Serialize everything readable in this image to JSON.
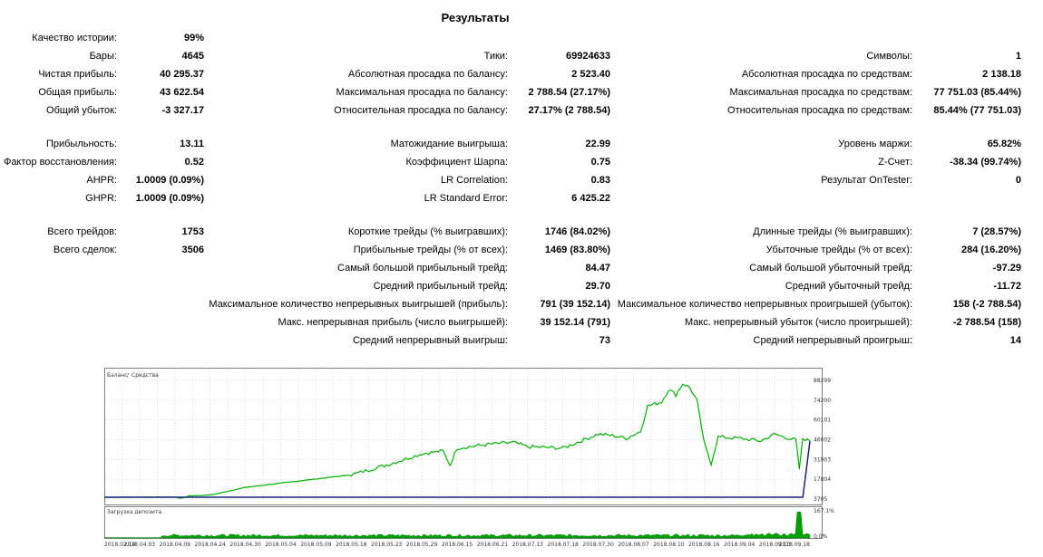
{
  "report": {
    "title": "Результаты",
    "col1": [
      {
        "label": "Качество истории:",
        "value": "99%"
      },
      {
        "label": "Бары:",
        "value": "4645"
      },
      {
        "label": "Чистая прибыль:",
        "value": "40 295.37"
      },
      {
        "label": "Общая прибыль:",
        "value": "43 622.54"
      },
      {
        "label": "Общий убыток:",
        "value": "-3 327.17"
      },
      {
        "label": "Прибыльность:",
        "value": "13.11"
      },
      {
        "label": "Фактор восстановления:",
        "value": "0.52"
      },
      {
        "label": "AHPR:",
        "value": "1.0009 (0.09%)"
      },
      {
        "label": "GHPR:",
        "value": "1.0009 (0.09%)"
      },
      {
        "label": "Всего трейдов:",
        "value": "1753"
      },
      {
        "label": "Всего сделок:",
        "value": "3506"
      }
    ],
    "col2": [
      {
        "label": "Тики:",
        "value": "69924633"
      },
      {
        "label": "Абсолютная просадка по балансу:",
        "value": "2 523.40"
      },
      {
        "label": "Максимальная просадка по балансу:",
        "value": "2 788.54 (27.17%)"
      },
      {
        "label": "Относительная просадка по балансу:",
        "value": "27.17% (2 788.54)"
      },
      {
        "label": "Матожидание выигрыша:",
        "value": "22.99"
      },
      {
        "label": "Коэффициент Шарпа:",
        "value": "0.75"
      },
      {
        "label": "LR Correlation:",
        "value": "0.83"
      },
      {
        "label": "LR Standard Error:",
        "value": "6 425.22"
      },
      {
        "label": "Короткие трейды (% выигравших):",
        "value": "1746 (84.02%)"
      },
      {
        "label": "Прибыльные трейды (% от всех):",
        "value": "1469 (83.80%)"
      },
      {
        "label": "Самый большой прибыльный трейд:",
        "value": "84.47"
      },
      {
        "label": "Средний прибыльный трейд:",
        "value": "29.70"
      },
      {
        "label": "Максимальное количество непрерывных выигрышей (прибыль):",
        "value": "791 (39 152.14)"
      },
      {
        "label": "Макс. непрерывная прибыль (число выигрышей):",
        "value": "39 152.14 (791)"
      },
      {
        "label": "Средний непрерывный выигрыш:",
        "value": "73"
      }
    ],
    "col3": [
      {
        "label": "Символы:",
        "value": "1"
      },
      {
        "label": "Абсолютная просадка по средствам:",
        "value": "2 138.18"
      },
      {
        "label": "Максимальная просадка по средствам:",
        "value": "77 751.03 (85.44%)"
      },
      {
        "label": "Относительная просадка по средствам:",
        "value": "85.44% (77 751.03)"
      },
      {
        "label": "Уровень маржи:",
        "value": "65.82%"
      },
      {
        "label": "Z-Счет:",
        "value": "-38.34 (99.74%)"
      },
      {
        "label": "Результат OnTester:",
        "value": "0"
      },
      {
        "label": "Длинные трейды (% выигравших):",
        "value": "7 (28.57%)"
      },
      {
        "label": "Убыточные трейды (% от всех):",
        "value": "284 (16.20%)"
      },
      {
        "label": "Самый большой убыточный трейд:",
        "value": "-97.29"
      },
      {
        "label": "Средний убыточный трейд:",
        "value": "-11.72"
      },
      {
        "label": "Максимальное количество непрерывных проигрышей (убыток):",
        "value": "158 (-2 788.54)"
      },
      {
        "label": "Макс. непрерывный убыток (число проигрышей):",
        "value": "-2 788.54 (158)"
      },
      {
        "label": "Средний непрерывный проигрыш:",
        "value": "14"
      }
    ]
  },
  "chart_data": {
    "type": "line",
    "legend": {
      "balance": "Баланс",
      "separator": " / ",
      "equity": "Средства",
      "placement": "top-left"
    },
    "colors": {
      "balance": "#1a237e",
      "equity": "#00b000",
      "load": "#00a000",
      "grid": "#bdbdbd"
    },
    "y_ticks": [
      "88299",
      "74200",
      "60101",
      "46002",
      "31903",
      "17804",
      "3705"
    ],
    "ylim": [
      3705,
      88299
    ],
    "x_ticks": [
      "2018.02.14",
      "2018.04.03",
      "2018.04.09",
      "2018.04.24",
      "2018.04.30",
      "2018.05.04",
      "2018.05.09",
      "2018.05.18",
      "2018.05.23",
      "2018.05.29",
      "2018.06.15",
      "2018.06.21",
      "2018.07.13",
      "2018.07.18",
      "2018.07.30",
      "2018.08.07",
      "2018.08.10",
      "2018.08.16",
      "2018.09.04",
      "2018.09.10",
      "2018.09.18"
    ],
    "series": [
      {
        "name": "Баланс",
        "points": [
          [
            0,
            5000
          ],
          [
            0.99,
            5000
          ],
          [
            1.0,
            45000
          ]
        ]
      },
      {
        "name": "Средства",
        "points": [
          [
            0,
            5000
          ],
          [
            0.1,
            5100
          ],
          [
            0.11,
            4200
          ],
          [
            0.12,
            6000
          ],
          [
            0.15,
            6500
          ],
          [
            0.2,
            12000
          ],
          [
            0.25,
            15000
          ],
          [
            0.3,
            18000
          ],
          [
            0.35,
            21000
          ],
          [
            0.4,
            28000
          ],
          [
            0.45,
            36000
          ],
          [
            0.48,
            38000
          ],
          [
            0.49,
            28000
          ],
          [
            0.5,
            40000
          ],
          [
            0.55,
            43000
          ],
          [
            0.58,
            44000
          ],
          [
            0.6,
            41000
          ],
          [
            0.65,
            40000
          ],
          [
            0.68,
            46000
          ],
          [
            0.7,
            50000
          ],
          [
            0.72,
            49000
          ],
          [
            0.74,
            47000
          ],
          [
            0.76,
            52000
          ],
          [
            0.77,
            70000
          ],
          [
            0.79,
            73000
          ],
          [
            0.8,
            82000
          ],
          [
            0.81,
            78000
          ],
          [
            0.82,
            86000
          ],
          [
            0.83,
            83000
          ],
          [
            0.84,
            74000
          ],
          [
            0.85,
            44000
          ],
          [
            0.86,
            29000
          ],
          [
            0.87,
            48000
          ],
          [
            0.9,
            47000
          ],
          [
            0.93,
            45000
          ],
          [
            0.95,
            50000
          ],
          [
            0.97,
            47000
          ],
          [
            0.98,
            46000
          ],
          [
            0.985,
            25000
          ],
          [
            0.99,
            47000
          ],
          [
            1.0,
            45000
          ]
        ]
      }
    ],
    "load_chart": {
      "title": "Загрузка депозита",
      "y_ticks": [
        "167.1%",
        "0.0%"
      ],
      "ylim": [
        0,
        167.1
      ]
    }
  }
}
